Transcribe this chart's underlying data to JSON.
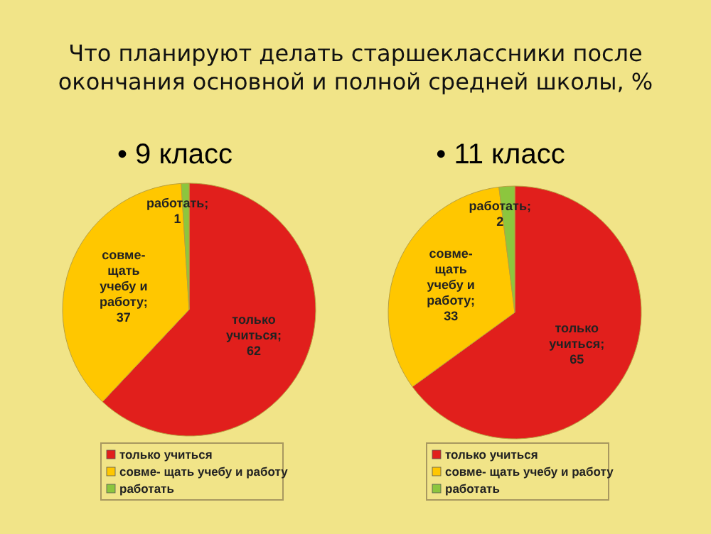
{
  "chart_data": [
    {
      "type": "pie",
      "title": "Что планируют делать старшеклассники после окончания основной и полной средней школы, %",
      "subtitle": "• 9 класс",
      "categories": [
        "только учиться",
        "совме- щать учебу и работу",
        "работать"
      ],
      "values": [
        62,
        37,
        1
      ],
      "colors": [
        "#e11f1c",
        "#ffc700",
        "#8cc63e"
      ],
      "value_labels": [
        "только учиться; 62",
        "совме- щать учебу и работу; 37",
        "работать; 1"
      ],
      "legend": "bottom"
    },
    {
      "type": "pie",
      "subtitle": "• 11 класс",
      "categories": [
        "только учиться",
        "совме- щать учебу и работу",
        "работать"
      ],
      "values": [
        65,
        33,
        2
      ],
      "colors": [
        "#e11f1c",
        "#ffc700",
        "#8cc63e"
      ],
      "value_labels": [
        "только учиться; 65",
        "совме- щать учебу и работу; 33",
        "работать; 2"
      ],
      "legend": "bottom"
    }
  ]
}
